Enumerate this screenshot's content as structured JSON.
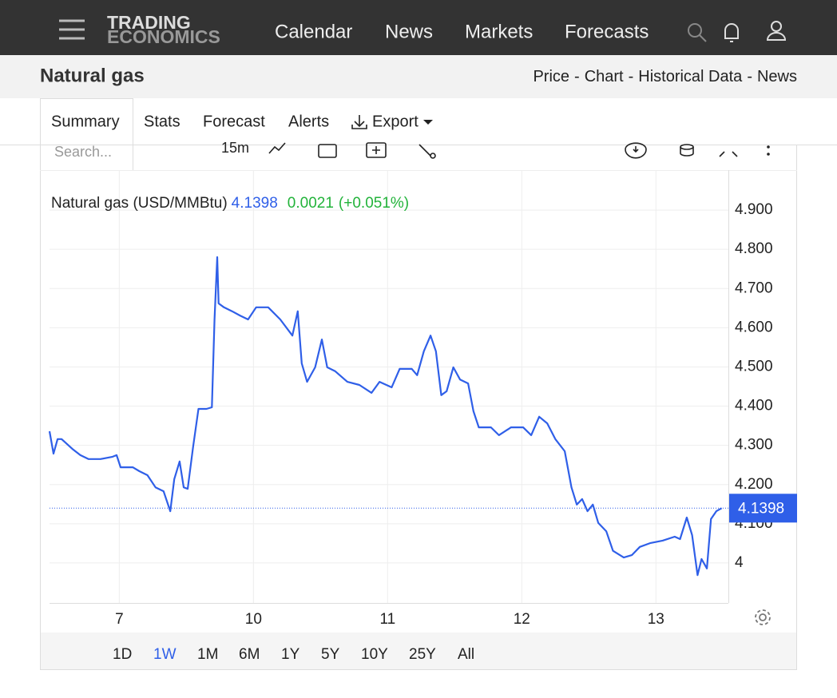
{
  "nav": {
    "brand": [
      "TRADING",
      "ECONOMICS"
    ],
    "links": [
      "Calendar",
      "News",
      "Markets",
      "Forecasts"
    ]
  },
  "header": {
    "title": "Natural gas",
    "links": [
      "Price",
      "Chart",
      "Historical Data",
      "News"
    ],
    "separator": "-"
  },
  "tabs": [
    "Summary",
    "Stats",
    "Forecast",
    "Alerts",
    "Export"
  ],
  "toolbar": {
    "search": "Search...",
    "interval": "15m"
  },
  "ranges": [
    "1D",
    "1W",
    "1M",
    "6M",
    "1Y",
    "5Y",
    "10Y",
    "25Y",
    "All"
  ],
  "active_range": "1W",
  "chart_data": {
    "type": "line",
    "legend": {
      "name": "Natural gas (USD/MMBtu)",
      "last": 4.1398,
      "change": 0.0021,
      "change_percent": {
        "value": 0.051,
        "label": "(+0.051%)"
      }
    },
    "x": [
      -0.52,
      -0.49,
      -0.46,
      -0.43,
      -0.35,
      -0.29,
      -0.23,
      -0.14,
      -0.05,
      -0.02,
      0.01,
      0.1,
      0.15,
      0.21,
      0.27,
      0.33,
      0.38,
      0.41,
      0.45,
      0.48,
      0.51,
      0.55,
      0.59,
      0.65,
      0.69,
      0.71,
      0.73,
      0.74,
      0.78,
      0.84,
      0.9,
      0.96,
      1.02,
      1.11,
      1.2,
      1.29,
      1.33,
      1.36,
      1.4,
      1.46,
      1.51,
      1.55,
      1.61,
      1.7,
      1.79,
      1.88,
      1.94,
      2.03,
      2.09,
      2.18,
      2.22,
      2.27,
      2.32,
      2.36,
      2.4,
      2.44,
      2.49,
      2.54,
      2.6,
      2.64,
      2.68,
      2.77,
      2.83,
      2.92,
      3.01,
      3.07,
      3.13,
      3.19,
      3.25,
      3.32,
      3.37,
      3.41,
      3.45,
      3.49,
      3.53,
      3.57,
      3.63,
      3.68,
      3.76,
      3.82,
      3.88,
      3.96,
      4.05,
      4.14,
      4.18,
      4.23,
      4.27,
      4.31,
      4.34,
      4.38,
      4.41,
      4.45,
      4.49
    ],
    "series": [
      {
        "name": "Natural gas",
        "color": "#2f5fe8",
        "values": [
          4.336,
          4.279,
          4.316,
          4.316,
          4.291,
          4.275,
          4.265,
          4.265,
          4.271,
          4.275,
          4.244,
          4.244,
          4.234,
          4.224,
          4.193,
          4.183,
          4.132,
          4.214,
          4.259,
          4.193,
          4.189,
          4.295,
          4.393,
          4.393,
          4.397,
          4.621,
          4.78,
          4.662,
          4.652,
          4.642,
          4.631,
          4.621,
          4.652,
          4.652,
          4.621,
          4.58,
          4.642,
          4.509,
          4.462,
          4.499,
          4.57,
          4.499,
          4.489,
          4.462,
          4.454,
          4.434,
          4.462,
          4.448,
          4.495,
          4.495,
          4.479,
          4.54,
          4.58,
          4.54,
          4.428,
          4.438,
          4.499,
          4.468,
          4.458,
          4.387,
          4.346,
          4.346,
          4.326,
          4.346,
          4.346,
          4.326,
          4.373,
          4.356,
          4.316,
          4.285,
          4.193,
          4.149,
          4.163,
          4.132,
          4.149,
          4.102,
          4.081,
          4.031,
          4.014,
          4.02,
          4.041,
          4.051,
          4.057,
          4.067,
          4.061,
          4.116,
          4.071,
          3.969,
          4.01,
          3.986,
          4.112,
          4.132,
          4.1398
        ]
      }
    ],
    "xlim": [
      -0.52,
      4.54
    ],
    "xticks": [
      {
        "value": 0,
        "label": "7"
      },
      {
        "value": 1,
        "label": "10"
      },
      {
        "value": 2,
        "label": "11"
      },
      {
        "value": 3,
        "label": "12"
      },
      {
        "value": 4,
        "label": "13"
      }
    ],
    "ylim": [
      3.898,
      5.002
    ],
    "yticks": [
      4,
      {
        "value": 4.1,
        "label": "4.100"
      },
      {
        "value": 4.2,
        "label": "4.200"
      },
      {
        "value": 4.3,
        "label": "4.300"
      },
      {
        "value": 4.4,
        "label": "4.400"
      },
      {
        "value": 4.5,
        "label": "4.500"
      },
      {
        "value": 4.6,
        "label": "4.600"
      },
      {
        "value": 4.7,
        "label": "4.700"
      },
      {
        "value": 4.8,
        "label": "4.800"
      },
      {
        "value": 4.9,
        "label": "4.900"
      }
    ],
    "grid": true
  }
}
